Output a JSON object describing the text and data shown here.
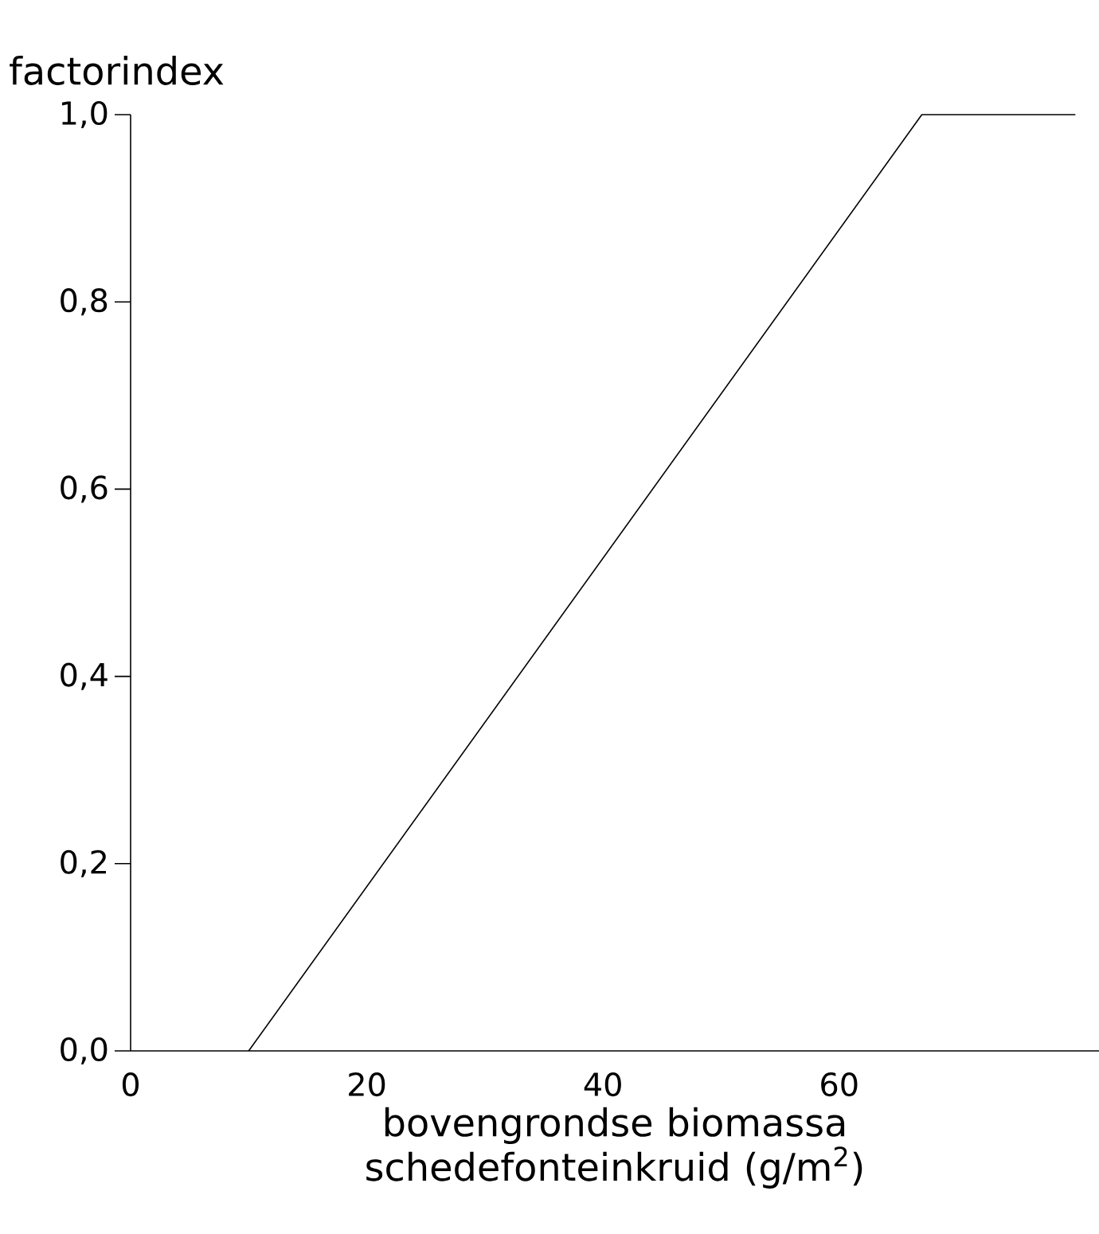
{
  "chart_data": {
    "type": "line",
    "ylabel": "factorindex",
    "xlabel": "bovengrondse biomassa schedefonteinkruid (g/m$^{2}$)",
    "x": [
      10,
      67,
      80
    ],
    "values": [
      0,
      1.0,
      1.0
    ],
    "color": "#000000",
    "xlim": [
      0,
      82
    ],
    "ylim": [
      0,
      1.0
    ],
    "xticks": [
      0,
      20,
      40,
      60
    ],
    "yticks": [
      {
        "value": 0,
        "label": "0,0"
      },
      {
        "value": 0.2,
        "label": "0,2"
      },
      {
        "value": 0.4,
        "label": "0,4"
      },
      {
        "value": 0.6,
        "label": "0,6"
      },
      {
        "value": 0.8,
        "label": "0,8"
      },
      {
        "value": 1.0,
        "label": "1,0"
      }
    ],
    "grid": false,
    "marker": "none",
    "line_style": "solid"
  }
}
